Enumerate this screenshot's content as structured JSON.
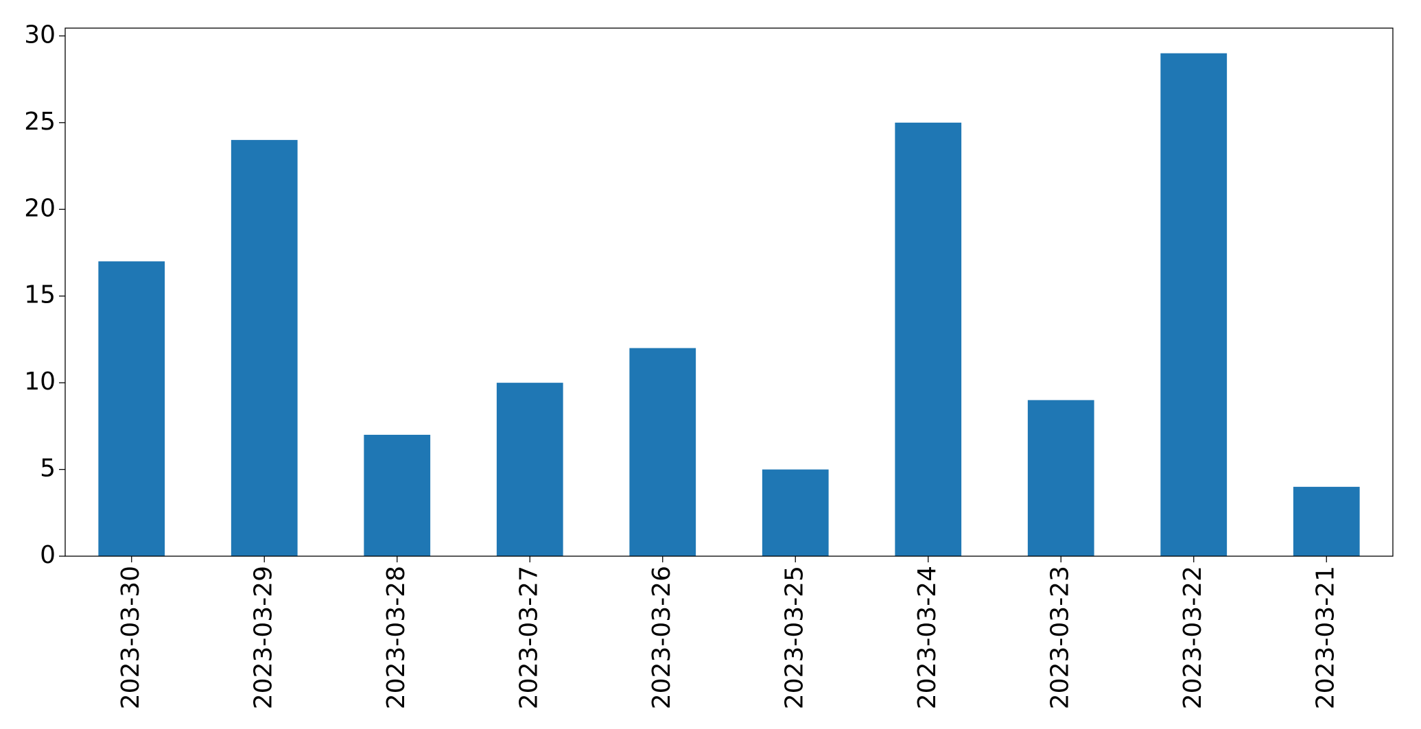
{
  "chart_data": {
    "type": "bar",
    "categories": [
      "2023-03-30",
      "2023-03-29",
      "2023-03-28",
      "2023-03-27",
      "2023-03-26",
      "2023-03-25",
      "2023-03-24",
      "2023-03-23",
      "2023-03-22",
      "2023-03-21"
    ],
    "values": [
      17,
      24,
      7,
      10,
      12,
      5,
      25,
      9,
      29,
      4
    ],
    "color": "#1f77b4",
    "ylim": [
      0,
      30.45
    ],
    "yticks": [
      0,
      5,
      10,
      15,
      20,
      25,
      30
    ],
    "grid": false
  }
}
